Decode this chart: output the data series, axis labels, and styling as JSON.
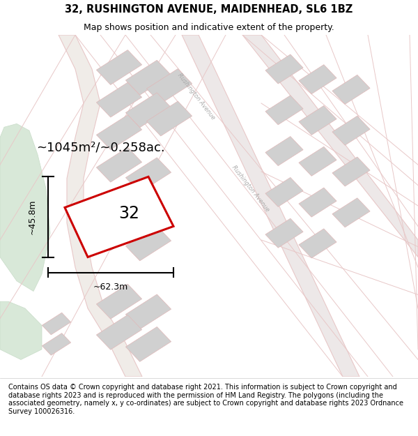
{
  "title": "32, RUSHINGTON AVENUE, MAIDENHEAD, SL6 1BZ",
  "subtitle": "Map shows position and indicative extent of the property.",
  "footer": "Contains OS data © Crown copyright and database right 2021. This information is subject to Crown copyright and database rights 2023 and is reproduced with the permission of HM Land Registry. The polygons (including the associated geometry, namely x, y co-ordinates) are subject to Crown copyright and database rights 2023 Ordnance Survey 100026316.",
  "map_bg": "#f8f5f2",
  "road_color": "#e8c8c8",
  "road_fill": "#f0e0e0",
  "block_color": "#d0d0d0",
  "block_edge": "#e0b8b8",
  "plot_outline_color": "#cc0000",
  "green_color": "#d8e8d8",
  "green_edge": "#c8dcc8",
  "dim_color": "#111111",
  "area_label": "~1045m²/~0.258ac.",
  "dim_width_label": "~62.3m",
  "dim_height_label": "~45.8m",
  "plot_label": "32",
  "title_fontsize": 10.5,
  "subtitle_fontsize": 9,
  "footer_fontsize": 7.0,
  "road_text_color": "#aaaaaa",
  "road_text": "Rushington Avenue"
}
